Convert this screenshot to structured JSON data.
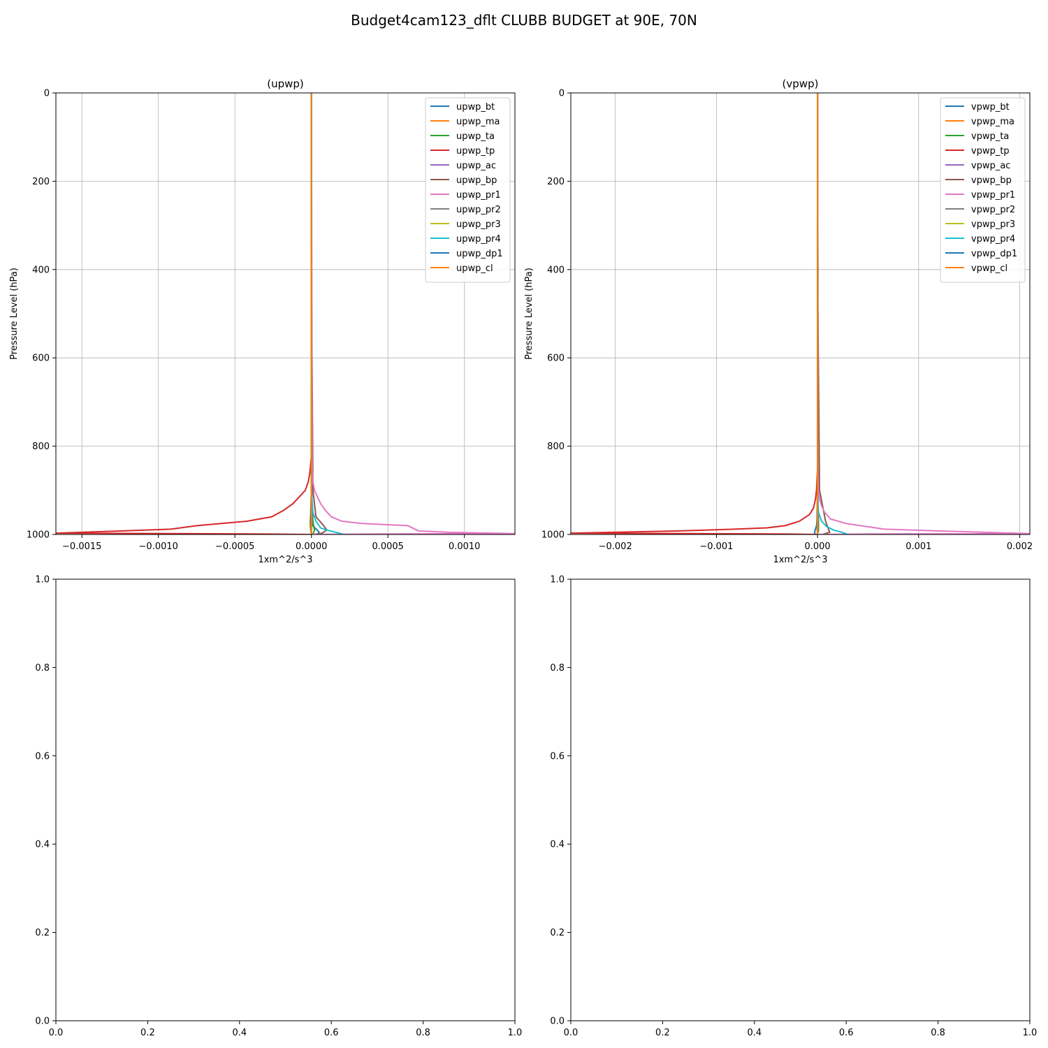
{
  "figure": {
    "title": "Budget4cam123_dflt CLUBB BUDGET at 90E, 70N"
  },
  "chart_data": [
    {
      "type": "line",
      "title": "(upwp)",
      "xlabel": "1xm^2/s^3",
      "ylabel": "Pressure Level (hPa)",
      "xlim": [
        -0.00167,
        0.00133
      ],
      "ylim": [
        1000,
        0
      ],
      "xticks": [
        -0.0015,
        -0.001,
        -0.0005,
        0.0,
        0.0005,
        0.001
      ],
      "xtick_labels": [
        "−0.0015",
        "−0.0010",
        "−0.0005",
        "0.0000",
        "0.0005",
        "0.0010"
      ],
      "yticks": [
        0,
        200,
        400,
        600,
        800,
        1000
      ],
      "ytick_labels": [
        "0",
        "200",
        "400",
        "600",
        "800",
        "1000"
      ],
      "grid": true,
      "legend_position": "top-right",
      "series": [
        {
          "name": "upwp_bt",
          "color": "#1f77b4",
          "x": [
            0,
            0,
            0,
            1e-05,
            5e-05,
            4e-05
          ],
          "y": [
            0,
            800,
            960,
            980,
            995,
            1000
          ]
        },
        {
          "name": "upwp_ma",
          "color": "#ff7f0e",
          "x": [
            0,
            0,
            0,
            0
          ],
          "y": [
            0,
            800,
            990,
            1000
          ]
        },
        {
          "name": "upwp_ta",
          "color": "#2ca02c",
          "x": [
            0,
            0,
            1e-05,
            2e-05,
            1e-05
          ],
          "y": [
            0,
            900,
            970,
            990,
            1000
          ]
        },
        {
          "name": "upwp_tp",
          "color": "#d62728",
          "x": [
            0,
            0,
            -1e-05,
            -2e-05,
            -4e-05,
            -8e-05,
            -0.00012,
            -0.00018,
            -0.00026,
            -0.00042,
            -0.00075,
            -0.00092,
            -0.00125,
            -0.00167,
            -0.0009,
            -0.0003,
            0
          ],
          "y": [
            0,
            820,
            860,
            880,
            900,
            915,
            930,
            945,
            960,
            970,
            980,
            988,
            992,
            997,
            998,
            999,
            1000
          ]
        },
        {
          "name": "upwp_ac",
          "color": "#9467bd",
          "x": [
            0,
            0,
            5e-06,
            0
          ],
          "y": [
            0,
            800,
            960,
            1000
          ]
        },
        {
          "name": "upwp_bp",
          "color": "#8c564b",
          "x": [
            0,
            0,
            0,
            1e-05,
            3e-05,
            8e-05,
            0.0001,
            7e-05,
            2e-05
          ],
          "y": [
            0,
            250,
            400,
            900,
            960,
            980,
            990,
            997,
            1000
          ]
        },
        {
          "name": "upwp_pr1",
          "color": "#e377c2",
          "x": [
            0,
            5e-06,
            1e-05,
            2e-05,
            4e-05,
            6e-05,
            9e-05,
            0.00013,
            0.0002,
            0.00033,
            0.00063,
            0.0007,
            0.0009,
            0.00133,
            0.0004,
            0
          ],
          "y": [
            0,
            840,
            880,
            900,
            915,
            930,
            945,
            960,
            970,
            975,
            980,
            992,
            995,
            998,
            999,
            1000
          ]
        },
        {
          "name": "upwp_pr2",
          "color": "#7f7f7f",
          "x": [
            0,
            0,
            3e-06,
            0
          ],
          "y": [
            0,
            800,
            960,
            1000
          ]
        },
        {
          "name": "upwp_pr3",
          "color": "#bcbd22",
          "x": [
            0,
            0,
            -5e-06,
            -1e-05,
            0
          ],
          "y": [
            0,
            900,
            950,
            980,
            1000
          ]
        },
        {
          "name": "upwp_pr4",
          "color": "#17becf",
          "x": [
            0,
            0,
            1e-05,
            3e-05,
            6e-05,
            0.0001,
            0.00016,
            0.00021
          ],
          "y": [
            0,
            900,
            950,
            970,
            985,
            990,
            995,
            1000
          ]
        },
        {
          "name": "upwp_dp1",
          "color": "#1f77b4",
          "x": [
            0,
            0,
            -5e-06,
            0
          ],
          "y": [
            0,
            900,
            970,
            1000
          ]
        },
        {
          "name": "upwp_cl",
          "color": "#ff7f0e",
          "x": [
            0,
            0,
            0
          ],
          "y": [
            0,
            990,
            1000
          ]
        }
      ]
    },
    {
      "type": "line",
      "title": "(vpwp)",
      "xlabel": "1xm^2/s^3",
      "ylabel": "Pressure Level (hPa)",
      "xlim": [
        -0.00244,
        0.0021
      ],
      "ylim": [
        1000,
        0
      ],
      "xticks": [
        -0.002,
        -0.001,
        0.0,
        0.001,
        0.002
      ],
      "xtick_labels": [
        "−0.002",
        "−0.001",
        "0.000",
        "0.001",
        "0.002"
      ],
      "yticks": [
        0,
        200,
        400,
        600,
        800,
        1000
      ],
      "ytick_labels": [
        "0",
        "200",
        "400",
        "600",
        "800",
        "1000"
      ],
      "grid": true,
      "legend_position": "top-right",
      "series": [
        {
          "name": "vpwp_bt",
          "color": "#1f77b4",
          "x": [
            0,
            0,
            0,
            -1e-05,
            -3e-05,
            -2e-05
          ],
          "y": [
            0,
            800,
            960,
            980,
            995,
            1000
          ]
        },
        {
          "name": "vpwp_ma",
          "color": "#ff7f0e",
          "x": [
            0,
            0,
            0,
            0
          ],
          "y": [
            0,
            800,
            990,
            1000
          ]
        },
        {
          "name": "vpwp_ta",
          "color": "#2ca02c",
          "x": [
            0,
            0,
            1e-05,
            1e-05,
            0
          ],
          "y": [
            0,
            900,
            970,
            990,
            1000
          ]
        },
        {
          "name": "vpwp_tp",
          "color": "#d62728",
          "x": [
            0,
            0,
            -1e-05,
            -2e-05,
            -4e-05,
            -8e-05,
            -0.00018,
            -0.00032,
            -0.0005,
            -0.00082,
            -0.0014,
            -0.00244,
            -0.0012,
            -0.0003,
            0
          ],
          "y": [
            0,
            850,
            900,
            920,
            940,
            955,
            970,
            980,
            985,
            988,
            992,
            997,
            998,
            999,
            1000
          ]
        },
        {
          "name": "vpwp_ac",
          "color": "#9467bd",
          "x": [
            0,
            0,
            5e-06,
            0
          ],
          "y": [
            0,
            800,
            960,
            1000
          ]
        },
        {
          "name": "vpwp_bp",
          "color": "#8c564b",
          "x": [
            0,
            0,
            0,
            2e-05,
            8e-05,
            0.00012,
            5e-05
          ],
          "y": [
            0,
            250,
            400,
            900,
            970,
            995,
            1000
          ]
        },
        {
          "name": "vpwp_pr1",
          "color": "#e377c2",
          "x": [
            0,
            5e-06,
            1e-05,
            2e-05,
            4e-05,
            7e-05,
            0.00013,
            0.00028,
            0.00066,
            0.00121,
            0.0021,
            0.0005,
            0
          ],
          "y": [
            0,
            850,
            900,
            920,
            935,
            950,
            965,
            975,
            988,
            992,
            998,
            999,
            1000
          ]
        },
        {
          "name": "vpwp_pr2",
          "color": "#7f7f7f",
          "x": [
            0,
            0,
            5e-06,
            0
          ],
          "y": [
            0,
            250,
            400,
            1000
          ]
        },
        {
          "name": "vpwp_pr3",
          "color": "#bcbd22",
          "x": [
            0,
            0,
            -5e-06,
            0
          ],
          "y": [
            0,
            900,
            980,
            1000
          ]
        },
        {
          "name": "vpwp_pr4",
          "color": "#17becf",
          "x": [
            0,
            0,
            1e-05,
            4e-05,
            9e-05,
            0.00016,
            0.00024,
            0.0003
          ],
          "y": [
            0,
            900,
            950,
            970,
            982,
            990,
            995,
            1000
          ]
        },
        {
          "name": "vpwp_dp1",
          "color": "#1f77b4",
          "x": [
            0,
            0,
            -5e-06,
            0
          ],
          "y": [
            0,
            900,
            970,
            1000
          ]
        },
        {
          "name": "vpwp_cl",
          "color": "#ff7f0e",
          "x": [
            0,
            0,
            0
          ],
          "y": [
            0,
            990,
            1000
          ]
        }
      ]
    },
    {
      "type": "line",
      "title": "",
      "xlim": [
        0,
        1
      ],
      "ylim": [
        0,
        1
      ],
      "xticks": [
        0,
        0.2,
        0.4,
        0.6,
        0.8,
        1.0
      ],
      "xtick_labels": [
        "0.0",
        "0.2",
        "0.4",
        "0.6",
        "0.8",
        "1.0"
      ],
      "yticks": [
        0,
        0.2,
        0.4,
        0.6,
        0.8,
        1.0
      ],
      "ytick_labels": [
        "0.0",
        "0.2",
        "0.4",
        "0.6",
        "0.8",
        "1.0"
      ],
      "grid": false,
      "series": []
    },
    {
      "type": "line",
      "title": "",
      "xlim": [
        0,
        1
      ],
      "ylim": [
        0,
        1
      ],
      "xticks": [
        0,
        0.2,
        0.4,
        0.6,
        0.8,
        1.0
      ],
      "xtick_labels": [
        "0.0",
        "0.2",
        "0.4",
        "0.6",
        "0.8",
        "1.0"
      ],
      "yticks": [
        0,
        0.2,
        0.4,
        0.6,
        0.8,
        1.0
      ],
      "ytick_labels": [
        "0.0",
        "0.2",
        "0.4",
        "0.6",
        "0.8",
        "1.0"
      ],
      "grid": false,
      "series": []
    }
  ]
}
